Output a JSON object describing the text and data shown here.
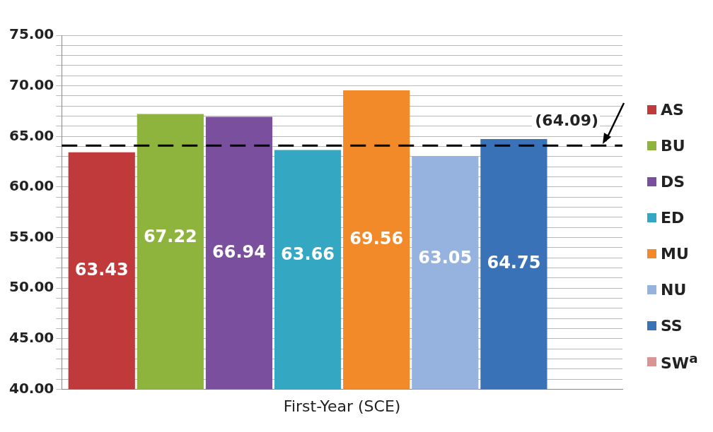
{
  "chart_data": {
    "type": "bar",
    "categories": [
      "First-Year (SCE)"
    ],
    "series": [
      {
        "name": "AS",
        "color": "#c0393b",
        "values": [
          63.43
        ]
      },
      {
        "name": "BU",
        "color": "#8fb43e",
        "values": [
          67.22
        ]
      },
      {
        "name": "DS",
        "color": "#7a4f9d",
        "values": [
          66.94
        ]
      },
      {
        "name": "ED",
        "color": "#34a7c2",
        "values": [
          63.66
        ]
      },
      {
        "name": "MU",
        "color": "#f28a2a",
        "values": [
          69.56
        ]
      },
      {
        "name": "NU",
        "color": "#95b3de",
        "values": [
          63.05
        ]
      },
      {
        "name": "SS",
        "color": "#3a72b8",
        "values": [
          64.75
        ]
      },
      {
        "name": "SW$^{a}$",
        "color": "#d99594",
        "values": [
          null
        ]
      }
    ],
    "ylim": [
      40,
      75
    ],
    "yticks": [
      {
        "value": 40,
        "label": "40.00"
      },
      {
        "value": 41,
        "label": null
      },
      {
        "value": 42,
        "label": null
      },
      {
        "value": 43,
        "label": null
      },
      {
        "value": 44,
        "label": null
      },
      {
        "value": 45,
        "label": "45.00"
      },
      {
        "value": 46,
        "label": null
      },
      {
        "value": 47,
        "label": null
      },
      {
        "value": 48,
        "label": null
      },
      {
        "value": 49,
        "label": null
      },
      {
        "value": 50,
        "label": "50.00"
      },
      {
        "value": 51,
        "label": null
      },
      {
        "value": 52,
        "label": null
      },
      {
        "value": 53,
        "label": null
      },
      {
        "value": 54,
        "label": null
      },
      {
        "value": 55,
        "label": "55.00"
      },
      {
        "value": 56,
        "label": null
      },
      {
        "value": 57,
        "label": null
      },
      {
        "value": 58,
        "label": null
      },
      {
        "value": 59,
        "label": null
      },
      {
        "value": 60,
        "label": "60.00"
      },
      {
        "value": 61,
        "label": null
      },
      {
        "value": 62,
        "label": null
      },
      {
        "value": 63,
        "label": null
      },
      {
        "value": 64,
        "label": null
      },
      {
        "value": 65,
        "label": "65.00"
      },
      {
        "value": 66,
        "label": null
      },
      {
        "value": 67,
        "label": null
      },
      {
        "value": 68,
        "label": null
      },
      {
        "value": 69,
        "label": null
      },
      {
        "value": 70,
        "label": "70.00"
      },
      {
        "value": 71,
        "label": null
      },
      {
        "value": 72,
        "label": null
      },
      {
        "value": 73,
        "label": null
      },
      {
        "value": 74,
        "label": null
      },
      {
        "value": 75,
        "label": "75.00"
      }
    ],
    "ref_lines": [
      {
        "axis": "y",
        "value": 64.09,
        "label": "(64.09)",
        "color": "#000000",
        "line_style": "dashed"
      }
    ],
    "data_labels": true,
    "grid": "y",
    "legend": "right"
  }
}
